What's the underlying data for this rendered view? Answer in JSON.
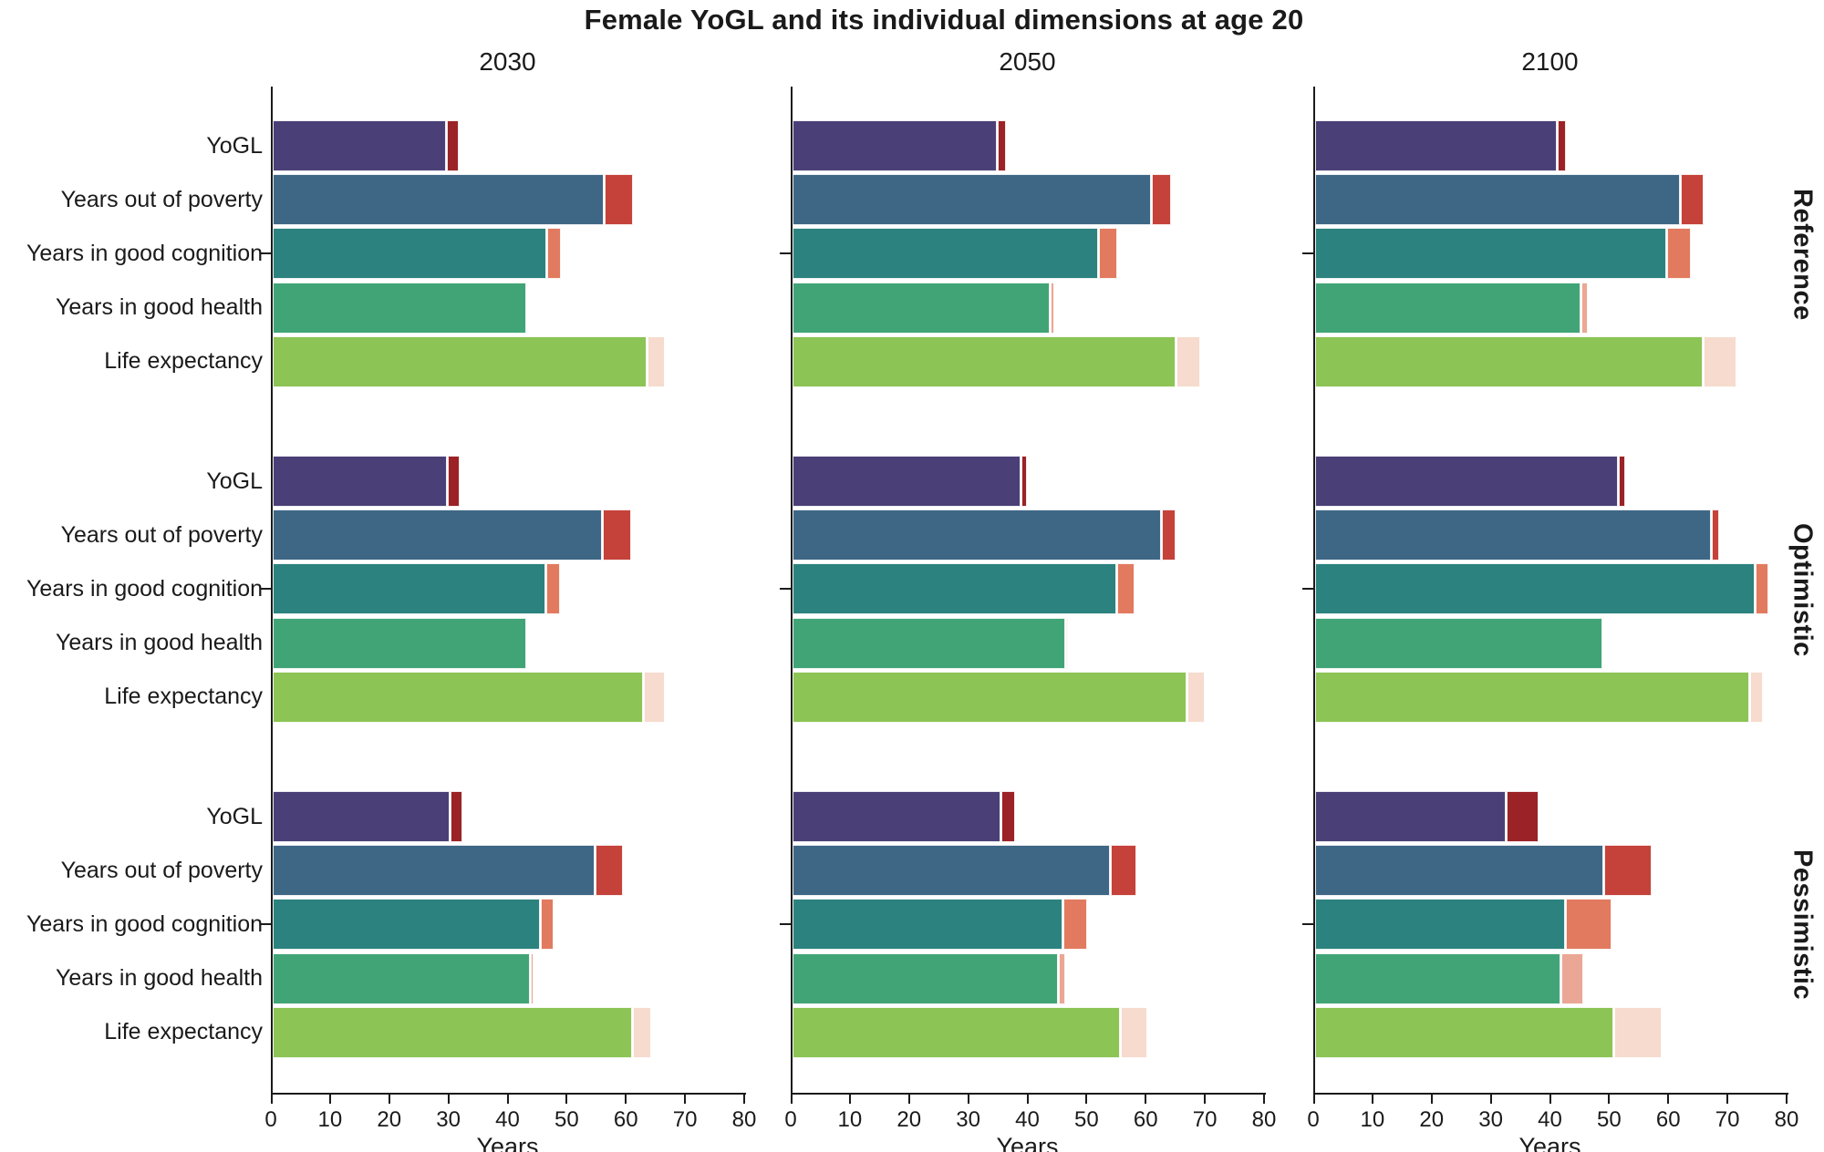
{
  "title": "Female YoGL and its individual dimensions at age 20",
  "column_titles": [
    "2030",
    "2050",
    "2100"
  ],
  "row_titles": [
    "Reference",
    "Optimistic",
    "Pessimistic"
  ],
  "categories": [
    "YoGL",
    "Years out of poverty",
    "Years in good cognition",
    "Years in good health",
    "Life expectancy"
  ],
  "xlabel": "Years",
  "axis": {
    "min": 0,
    "max": 80,
    "ticks": [
      0,
      10,
      20,
      30,
      40,
      50,
      60,
      70,
      80
    ]
  },
  "colors": {
    "axis": "#1a1a1a",
    "text": "#1a1a1a",
    "main": [
      "#4a4077",
      "#3e6786",
      "#2c827e",
      "#41a477",
      "#8cc455"
    ],
    "ext": [
      "#9b2226",
      "#c4423a",
      "#e27a5f",
      "#eba795",
      "#f6dbce"
    ]
  },
  "chart_data": {
    "type": "bar",
    "orientation": "horizontal",
    "unit": "years",
    "xlim": [
      0,
      80
    ],
    "grid": false,
    "note": "Each bar shows a main value plus a lighter/red extension to an upper value",
    "categories": [
      "YoGL",
      "Years out of poverty",
      "Years in good cognition",
      "Years in good health",
      "Life expectancy"
    ],
    "panels": [
      {
        "scenario": "Reference",
        "year": "2030",
        "bars": [
          {
            "category": "YoGL",
            "main": 29.6,
            "upper": 31.6
          },
          {
            "category": "Years out of poverty",
            "main": 56.2,
            "upper": 61.0
          },
          {
            "category": "Years in good cognition",
            "main": 46.6,
            "upper": 48.9
          },
          {
            "category": "Years in good health",
            "main": 43.2,
            "upper": 43.2
          },
          {
            "category": "Life expectancy",
            "main": 63.5,
            "upper": 66.4
          }
        ]
      },
      {
        "scenario": "Reference",
        "year": "2050",
        "bars": [
          {
            "category": "YoGL",
            "main": 34.9,
            "upper": 36.3
          },
          {
            "category": "Years out of poverty",
            "main": 60.9,
            "upper": 64.1
          },
          {
            "category": "Years in good cognition",
            "main": 52.0,
            "upper": 55.1
          },
          {
            "category": "Years in good health",
            "main": 43.7,
            "upper": 44.4
          },
          {
            "category": "Life expectancy",
            "main": 65.1,
            "upper": 69.0
          }
        ]
      },
      {
        "scenario": "Reference",
        "year": "2100",
        "bars": [
          {
            "category": "YoGL",
            "main": 41.1,
            "upper": 42.5
          },
          {
            "category": "Years out of poverty",
            "main": 61.9,
            "upper": 65.8
          },
          {
            "category": "Years in good cognition",
            "main": 59.7,
            "upper": 63.7
          },
          {
            "category": "Years in good health",
            "main": 45.2,
            "upper": 46.3
          },
          {
            "category": "Life expectancy",
            "main": 65.8,
            "upper": 71.4
          }
        ]
      },
      {
        "scenario": "Optimistic",
        "year": "2030",
        "bars": [
          {
            "category": "YoGL",
            "main": 29.8,
            "upper": 31.7
          },
          {
            "category": "Years out of poverty",
            "main": 55.9,
            "upper": 60.7
          },
          {
            "category": "Years in good cognition",
            "main": 46.4,
            "upper": 48.7
          },
          {
            "category": "Years in good health",
            "main": 43.1,
            "upper": 43.1
          },
          {
            "category": "Life expectancy",
            "main": 62.9,
            "upper": 66.4
          }
        ]
      },
      {
        "scenario": "Optimistic",
        "year": "2050",
        "bars": [
          {
            "category": "YoGL",
            "main": 38.8,
            "upper": 39.7
          },
          {
            "category": "Years out of poverty",
            "main": 62.6,
            "upper": 64.9
          },
          {
            "category": "Years in good cognition",
            "main": 55.1,
            "upper": 57.9
          },
          {
            "category": "Years in good health",
            "main": 46.4,
            "upper": 46.7
          },
          {
            "category": "Life expectancy",
            "main": 66.9,
            "upper": 69.9
          }
        ]
      },
      {
        "scenario": "Optimistic",
        "year": "2100",
        "bars": [
          {
            "category": "YoGL",
            "main": 51.5,
            "upper": 52.5
          },
          {
            "category": "Years out of poverty",
            "main": 67.2,
            "upper": 68.5
          },
          {
            "category": "Years in good cognition",
            "main": 74.6,
            "upper": 76.7
          },
          {
            "category": "Years in good health",
            "main": 48.9,
            "upper": 48.9
          },
          {
            "category": "Life expectancy",
            "main": 73.7,
            "upper": 75.9
          }
        ]
      },
      {
        "scenario": "Pessimistic",
        "year": "2030",
        "bars": [
          {
            "category": "YoGL",
            "main": 30.2,
            "upper": 32.2
          },
          {
            "category": "Years out of poverty",
            "main": 54.7,
            "upper": 59.4
          },
          {
            "category": "Years in good cognition",
            "main": 45.5,
            "upper": 47.6
          },
          {
            "category": "Years in good health",
            "main": 43.8,
            "upper": 44.3
          },
          {
            "category": "Life expectancy",
            "main": 61.0,
            "upper": 64.1
          }
        ]
      },
      {
        "scenario": "Pessimistic",
        "year": "2050",
        "bars": [
          {
            "category": "YoGL",
            "main": 35.4,
            "upper": 37.7
          },
          {
            "category": "Years out of poverty",
            "main": 53.9,
            "upper": 58.2
          },
          {
            "category": "Years in good cognition",
            "main": 46.0,
            "upper": 49.9
          },
          {
            "category": "Years in good health",
            "main": 45.1,
            "upper": 46.3
          },
          {
            "category": "Life expectancy",
            "main": 55.7,
            "upper": 60.1
          }
        ]
      },
      {
        "scenario": "Pessimistic",
        "year": "2100",
        "bars": [
          {
            "category": "YoGL",
            "main": 32.5,
            "upper": 37.9
          },
          {
            "category": "Years out of poverty",
            "main": 49.0,
            "upper": 57.0
          },
          {
            "category": "Years in good cognition",
            "main": 42.5,
            "upper": 50.3
          },
          {
            "category": "Years in good health",
            "main": 41.8,
            "upper": 45.5
          },
          {
            "category": "Life expectancy",
            "main": 50.7,
            "upper": 58.7
          }
        ]
      }
    ]
  }
}
